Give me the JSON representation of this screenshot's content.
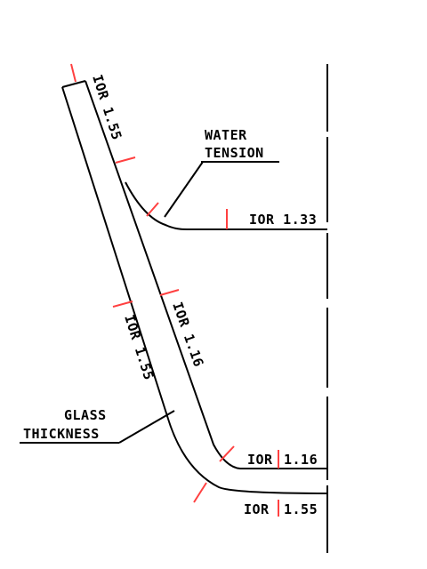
{
  "labels": {
    "ior_glass_top": "IOR 1.55",
    "water_tension_line1": "WATER",
    "water_tension_line2": "TENSION",
    "ior_water": "IOR 1.33",
    "ior_glass_mid": "IOR 1.55",
    "ior_inner_mid": "IOR 1.16",
    "glass_thickness_line1": "GLASS",
    "glass_thickness_line2": "THICKNESS",
    "ior_bottom_inner_prefix": "IOR",
    "ior_bottom_inner_value": "1.16",
    "ior_bottom_outer_prefix": "IOR",
    "ior_bottom_outer_value": "1.55"
  },
  "colors": {
    "line": "#000000",
    "marker": "#ff4040",
    "background": "#ffffff"
  }
}
